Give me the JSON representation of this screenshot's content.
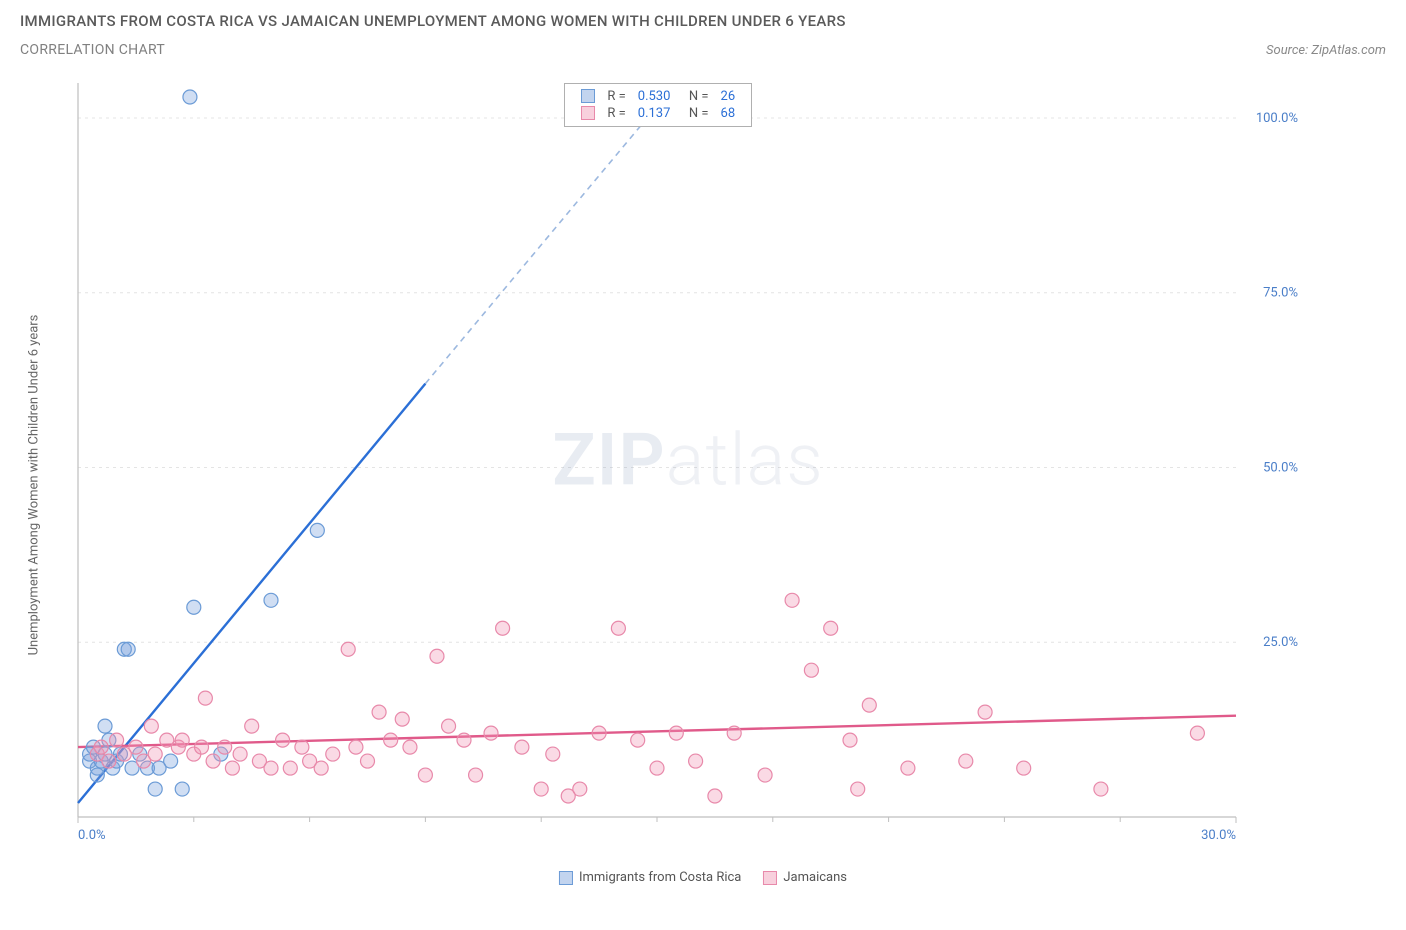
{
  "header": {
    "title": "IMMIGRANTS FROM COSTA RICA VS JAMAICAN UNEMPLOYMENT AMONG WOMEN WITH CHILDREN UNDER 6 YEARS",
    "subtitle": "CORRELATION CHART",
    "source": "Source: ZipAtlas.com"
  },
  "chart": {
    "type": "scatter",
    "y_axis_label": "Unemployment Among Women with Children Under 6 years",
    "watermark": {
      "bold": "ZIP",
      "rest": "atlas"
    },
    "xlim": [
      0,
      30
    ],
    "ylim": [
      0,
      105
    ],
    "x_ticks": [
      0,
      30
    ],
    "x_tick_labels": [
      "0.0%",
      "30.0%"
    ],
    "x_minor_ticks": [
      3,
      6,
      9,
      12,
      15,
      18,
      21,
      24,
      27
    ],
    "y_ticks": [
      25,
      50,
      75,
      100
    ],
    "y_tick_labels": [
      "25.0%",
      "50.0%",
      "75.0%",
      "100.0%"
    ],
    "grid_color": "#e4e4e4",
    "axis_color": "#bfbfbf",
    "background_color": "#ffffff",
    "series": [
      {
        "name": "Immigrants from Costa Rica",
        "marker_color_fill": "rgba(120,160,220,0.35)",
        "marker_color_stroke": "#6b9bd6",
        "marker_radius": 7,
        "line_color": "#2b6fd6",
        "line_dash_color": "#9cb8df",
        "stats": {
          "R": "0.530",
          "N": "26"
        },
        "trend": {
          "x1": 0,
          "y1": 2,
          "x2_solid": 9,
          "y2_solid": 62,
          "x2": 15.2,
          "y2": 103
        },
        "points": [
          [
            0.3,
            8
          ],
          [
            0.3,
            9
          ],
          [
            0.4,
            10
          ],
          [
            0.5,
            7
          ],
          [
            0.5,
            6
          ],
          [
            0.6,
            8
          ],
          [
            0.7,
            9
          ],
          [
            0.7,
            13
          ],
          [
            0.8,
            11
          ],
          [
            0.9,
            7
          ],
          [
            1.0,
            8
          ],
          [
            1.1,
            9
          ],
          [
            1.2,
            24
          ],
          [
            1.3,
            24
          ],
          [
            1.4,
            7
          ],
          [
            1.6,
            9
          ],
          [
            1.8,
            7
          ],
          [
            2.0,
            4
          ],
          [
            2.1,
            7
          ],
          [
            2.4,
            8
          ],
          [
            2.7,
            4
          ],
          [
            2.9,
            103
          ],
          [
            3.0,
            30
          ],
          [
            3.7,
            9
          ],
          [
            5.0,
            31
          ],
          [
            6.2,
            41
          ]
        ]
      },
      {
        "name": "Jamaicans",
        "marker_color_fill": "rgba(240,150,180,0.35)",
        "marker_color_stroke": "#e889aa",
        "marker_radius": 7,
        "line_color": "#e05a8a",
        "stats": {
          "R": "0.137",
          "N": "68"
        },
        "trend": {
          "x1": 0,
          "y1": 10,
          "x2": 30,
          "y2": 14.5
        },
        "points": [
          [
            0.5,
            9
          ],
          [
            0.6,
            10
          ],
          [
            0.8,
            8
          ],
          [
            1.0,
            11
          ],
          [
            1.2,
            9
          ],
          [
            1.5,
            10
          ],
          [
            1.7,
            8
          ],
          [
            1.9,
            13
          ],
          [
            2.0,
            9
          ],
          [
            2.3,
            11
          ],
          [
            2.6,
            10
          ],
          [
            2.7,
            11
          ],
          [
            3.0,
            9
          ],
          [
            3.2,
            10
          ],
          [
            3.3,
            17
          ],
          [
            3.5,
            8
          ],
          [
            3.8,
            10
          ],
          [
            4.0,
            7
          ],
          [
            4.2,
            9
          ],
          [
            4.5,
            13
          ],
          [
            4.7,
            8
          ],
          [
            5.0,
            7
          ],
          [
            5.3,
            11
          ],
          [
            5.5,
            7
          ],
          [
            5.8,
            10
          ],
          [
            6.0,
            8
          ],
          [
            6.3,
            7
          ],
          [
            6.6,
            9
          ],
          [
            7.0,
            24
          ],
          [
            7.2,
            10
          ],
          [
            7.5,
            8
          ],
          [
            7.8,
            15
          ],
          [
            8.1,
            11
          ],
          [
            8.4,
            14
          ],
          [
            8.6,
            10
          ],
          [
            9.0,
            6
          ],
          [
            9.3,
            23
          ],
          [
            9.6,
            13
          ],
          [
            10.0,
            11
          ],
          [
            10.3,
            6
          ],
          [
            10.7,
            12
          ],
          [
            11.0,
            27
          ],
          [
            11.5,
            10
          ],
          [
            12.0,
            4
          ],
          [
            12.3,
            9
          ],
          [
            12.7,
            3
          ],
          [
            13.0,
            4
          ],
          [
            13.5,
            12
          ],
          [
            14.0,
            27
          ],
          [
            14.5,
            11
          ],
          [
            15.0,
            7
          ],
          [
            15.5,
            12
          ],
          [
            16.0,
            8
          ],
          [
            16.5,
            3
          ],
          [
            17.0,
            12
          ],
          [
            17.8,
            6
          ],
          [
            18.5,
            31
          ],
          [
            19.0,
            21
          ],
          [
            19.5,
            27
          ],
          [
            20.0,
            11
          ],
          [
            20.2,
            4
          ],
          [
            20.5,
            16
          ],
          [
            21.5,
            7
          ],
          [
            23.0,
            8
          ],
          [
            23.5,
            15
          ],
          [
            24.5,
            7
          ],
          [
            26.5,
            4
          ],
          [
            29.0,
            12
          ]
        ]
      }
    ],
    "legend_bottom": [
      {
        "label": "Immigrants from Costa Rica",
        "fill": "rgba(120,160,220,0.45)",
        "stroke": "#6b9bd6"
      },
      {
        "label": "Jamaicans",
        "fill": "rgba(240,150,180,0.45)",
        "stroke": "#e889aa"
      }
    ],
    "stats_box": {
      "top_pct": 1,
      "left_pct": 40,
      "rows": [
        {
          "fill": "rgba(120,160,220,0.45)",
          "stroke": "#6b9bd6",
          "R": "0.530",
          "N": "26"
        },
        {
          "fill": "rgba(240,150,180,0.45)",
          "stroke": "#e889aa",
          "R": "0.137",
          "N": "68"
        }
      ],
      "labels": {
        "R": "R =",
        "N": "N ="
      }
    }
  }
}
